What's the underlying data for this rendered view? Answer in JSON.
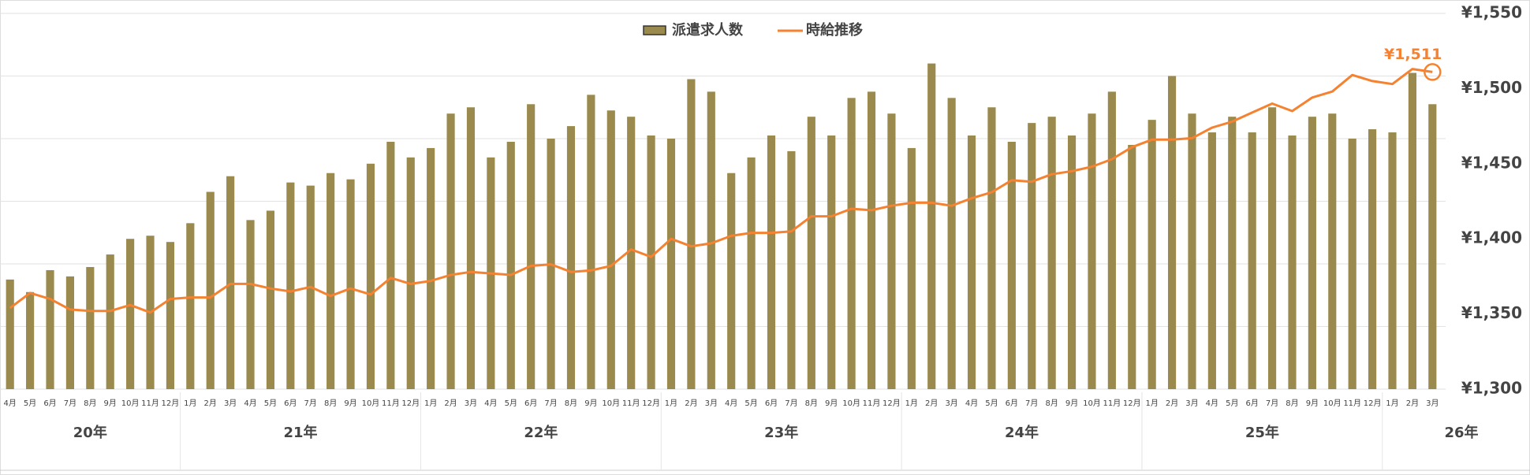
{
  "chart_data": {
    "type": "combo",
    "categories": [
      "4月",
      "5月",
      "6月",
      "7月",
      "8月",
      "9月",
      "10月",
      "11月",
      "12月",
      "1月",
      "2月",
      "3月",
      "4月",
      "5月",
      "6月",
      "7月",
      "8月",
      "9月",
      "10月",
      "11月",
      "12月",
      "1月",
      "2月",
      "3月",
      "4月",
      "5月",
      "6月",
      "7月",
      "8月",
      "9月",
      "10月",
      "11月",
      "12月",
      "1月",
      "2月",
      "3月",
      "4月",
      "5月",
      "6月",
      "7月",
      "8月",
      "9月",
      "10月",
      "11月",
      "12月",
      "1月",
      "2月",
      "3月",
      "4月",
      "5月",
      "6月",
      "7月",
      "8月",
      "9月",
      "10月",
      "11月",
      "12月",
      "1月",
      "2月",
      "3月",
      "4月",
      "5月",
      "6月",
      "7月",
      "8月",
      "9月",
      "10月",
      "11月",
      "12月",
      "1月",
      "2月",
      "3月"
    ],
    "category_groups": [
      {
        "label": "20年",
        "count": 9
      },
      {
        "label": "21年",
        "count": 12
      },
      {
        "label": "22年",
        "count": 12
      },
      {
        "label": "23年",
        "count": 12
      },
      {
        "label": "24年",
        "count": 12
      },
      {
        "label": "25年",
        "count": 12
      },
      {
        "label": "26年",
        "count": 3
      }
    ],
    "series": [
      {
        "name": "派遣求人数",
        "type": "bar",
        "color": "#9a8a4e",
        "values": [
          17.5,
          15.5,
          19,
          18,
          19.5,
          21.5,
          24,
          24.5,
          23.5,
          26.5,
          31.5,
          34,
          27,
          28.5,
          33,
          32.5,
          34.5,
          33.5,
          36,
          39.5,
          37,
          38.5,
          44,
          45,
          37,
          39.5,
          45.5,
          40,
          42,
          47,
          44.5,
          43.5,
          40.5,
          40,
          49.5,
          47.5,
          34.5,
          37,
          40.5,
          38,
          43.5,
          40.5,
          46.5,
          47.5,
          44,
          38.5,
          52,
          46.5,
          40.5,
          45,
          39.5,
          42.5,
          43.5,
          40.5,
          44,
          47.5,
          39,
          43,
          50,
          44,
          41,
          43.5,
          41,
          45,
          40.5,
          43.5,
          44,
          40,
          41.5,
          41,
          50.5,
          45.5
        ]
      },
      {
        "name": "時給推移",
        "type": "line",
        "axis": "y2",
        "color": "#f58231",
        "values": [
          1354,
          1364,
          1360,
          1353,
          1352,
          1352,
          1356,
          1351,
          1360,
          1361,
          1361,
          1370,
          1370,
          1367,
          1365,
          1368,
          1362,
          1367,
          1363,
          1374,
          1370,
          1372,
          1376,
          1378,
          1377,
          1376,
          1382,
          1383,
          1378,
          1379,
          1382,
          1393,
          1388,
          1400,
          1395,
          1397,
          1402,
          1404,
          1404,
          1405,
          1415,
          1415,
          1420,
          1419,
          1422,
          1424,
          1424,
          1422,
          1427,
          1431,
          1439,
          1438,
          1443,
          1445,
          1448,
          1453,
          1461,
          1466,
          1466,
          1467,
          1474,
          1478,
          1484,
          1490,
          1485,
          1494,
          1498,
          1509,
          1505,
          1503,
          1513,
          1511
        ],
        "value_labels": [
          null,
          null,
          null,
          null,
          null,
          null,
          null,
          null,
          null,
          null,
          null,
          null,
          null,
          null,
          null,
          null,
          null,
          null,
          null,
          null,
          null,
          null,
          null,
          null,
          null,
          null,
          null,
          null,
          null,
          null,
          null,
          null,
          null,
          null,
          null,
          null,
          null,
          null,
          null,
          null,
          null,
          null,
          null,
          null,
          null,
          null,
          null,
          null,
          null,
          null,
          null,
          null,
          null,
          null,
          null,
          null,
          null,
          null,
          null,
          null,
          null,
          null,
          null,
          null,
          null,
          null,
          null,
          null,
          null,
          null,
          null,
          "¥1,511"
        ]
      }
    ],
    "ylim": [
      0,
      60
    ],
    "yticks": [
      0,
      10,
      20,
      30,
      40,
      50,
      60
    ],
    "y2lim": [
      1300,
      1550
    ],
    "y2ticks": [
      {
        "value": 1300,
        "label": "¥1,300"
      },
      {
        "value": 1350,
        "label": "¥1,350"
      },
      {
        "value": 1400,
        "label": "¥1,400"
      },
      {
        "value": 1450,
        "label": "¥1,450"
      },
      {
        "value": 1500,
        "label": "¥1,500"
      },
      {
        "value": 1550,
        "label": "¥1,550"
      }
    ],
    "grid": true,
    "legend": "top"
  }
}
